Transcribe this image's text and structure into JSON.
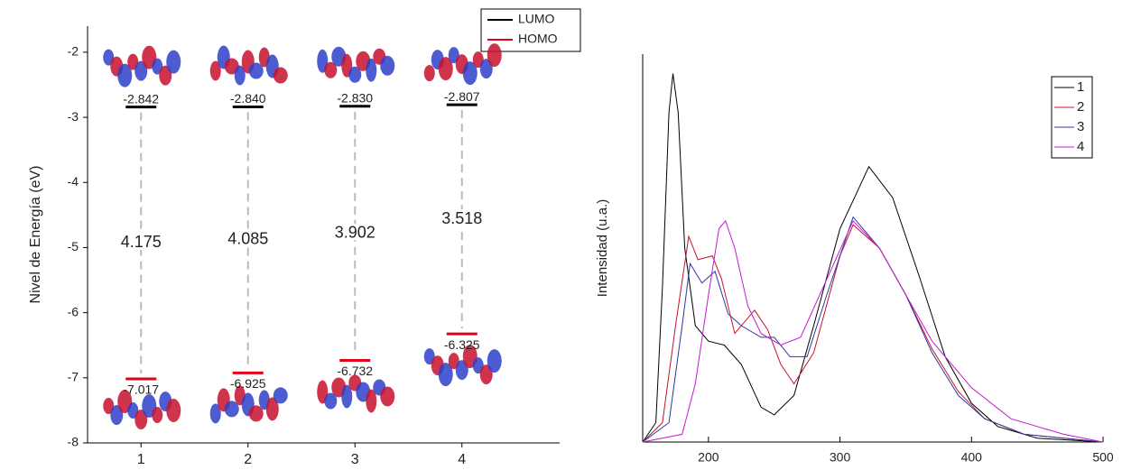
{
  "chart_data": [
    {
      "type": "energy-levels",
      "y_label": "Nivel de Energía (eV)",
      "categories": [
        "1",
        "2",
        "3",
        "4"
      ],
      "series": [
        {
          "name": "LUMO",
          "color": "#000000",
          "values": [
            -2.842,
            -2.84,
            -2.83,
            -2.807
          ],
          "value_labels": [
            "-2.842",
            "-2.840",
            "-2.830",
            "-2.807"
          ]
        },
        {
          "name": "HOMO",
          "color": "#e3001b",
          "values": [
            -7.017,
            -6.925,
            -6.732,
            -6.325
          ]
        }
      ],
      "gaps": [
        4.175,
        4.085,
        3.902,
        3.518
      ],
      "ylim": [
        -8,
        -1.6
      ],
      "yticks": [
        -8,
        -7,
        -6,
        -5,
        -4,
        -3,
        -2
      ]
    },
    {
      "type": "line",
      "y_label": "Intensidad (u.a.)",
      "xlim": [
        150,
        500
      ],
      "xticks": [
        200,
        300,
        400,
        500
      ],
      "ylim": [
        0,
        100
      ],
      "series": [
        {
          "name": "1",
          "color": "#000000",
          "x": [
            150,
            160,
            165,
            170,
            173,
            177,
            182,
            190,
            200,
            212,
            225,
            240,
            250,
            265,
            280,
            300,
            322,
            340,
            360,
            380,
            400,
            420,
            450,
            500
          ],
          "values": [
            0,
            5,
            40,
            85,
            95,
            85,
            50,
            30,
            26,
            25,
            20,
            9,
            7,
            12,
            30,
            55,
            71,
            63,
            43,
            22,
            10,
            4,
            1,
            0
          ]
        },
        {
          "name": "2",
          "color": "#c8102e",
          "x": [
            150,
            165,
            175,
            185,
            192,
            203,
            210,
            220,
            235,
            245,
            255,
            265,
            280,
            300,
            310,
            330,
            350,
            370,
            390,
            410,
            440,
            500
          ],
          "values": [
            0,
            5,
            30,
            53,
            47,
            48,
            42,
            28,
            34,
            29,
            20,
            15,
            23,
            48,
            56,
            50,
            38,
            24,
            13,
            6,
            2,
            0
          ]
        },
        {
          "name": "3",
          "color": "#2b3a9e",
          "x": [
            150,
            170,
            180,
            186,
            195,
            205,
            215,
            225,
            240,
            250,
            262,
            275,
            290,
            310,
            330,
            350,
            370,
            390,
            410,
            440,
            500
          ],
          "values": [
            0,
            5,
            30,
            46,
            41,
            44,
            33,
            30,
            27,
            27,
            22,
            22,
            38,
            58,
            50,
            38,
            23,
            12,
            6,
            2,
            0
          ]
        },
        {
          "name": "4",
          "color": "#c41ccf",
          "x": [
            150,
            180,
            190,
            200,
            208,
            213,
            220,
            230,
            240,
            255,
            270,
            290,
            310,
            330,
            350,
            370,
            400,
            430,
            470,
            500
          ],
          "values": [
            0,
            2,
            15,
            38,
            55,
            57,
            50,
            35,
            28,
            25,
            27,
            42,
            57,
            50,
            38,
            26,
            14,
            6,
            2,
            0
          ]
        }
      ]
    }
  ]
}
